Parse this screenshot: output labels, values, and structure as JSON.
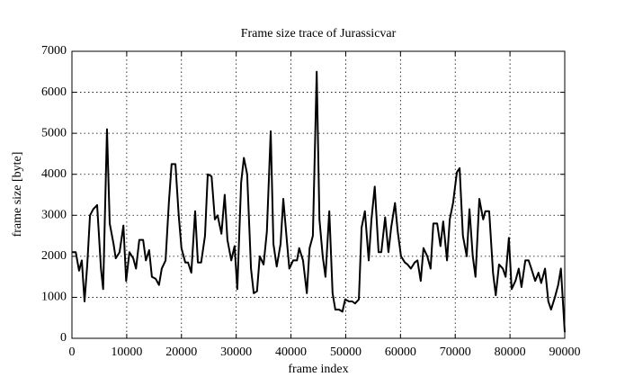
{
  "chart_data": {
    "type": "line",
    "title": "Frame size trace of Jurassicvar",
    "xlabel": "frame index",
    "ylabel": "frame size [byte]",
    "xlim": [
      0,
      90000
    ],
    "ylim": [
      0,
      7000
    ],
    "xticks": [
      0,
      10000,
      20000,
      30000,
      40000,
      50000,
      60000,
      70000,
      80000,
      90000
    ],
    "yticks": [
      0,
      1000,
      2000,
      3000,
      4000,
      5000,
      6000,
      7000
    ],
    "grid": true,
    "x": [
      0,
      700,
      1300,
      1800,
      2300,
      2800,
      3300,
      3900,
      4600,
      5300,
      5700,
      6400,
      6900,
      7600,
      8000,
      8700,
      9400,
      9900,
      10500,
      11200,
      11700,
      12300,
      13000,
      13500,
      14100,
      14600,
      15300,
      15900,
      16400,
      17100,
      17700,
      18200,
      18900,
      19500,
      20000,
      20700,
      21200,
      21800,
      22500,
      23000,
      23600,
      24300,
      24800,
      25500,
      26100,
      26600,
      27300,
      27900,
      28400,
      29100,
      29700,
      30200,
      30900,
      31400,
      32000,
      32700,
      33200,
      33800,
      34300,
      35000,
      35600,
      36300,
      36800,
      37400,
      38100,
      38600,
      39300,
      39700,
      40400,
      41100,
      41500,
      42200,
      42900,
      43400,
      44000,
      44700,
      45200,
      45800,
      46300,
      47000,
      47600,
      48100,
      48800,
      49400,
      49900,
      50600,
      51200,
      51700,
      52400,
      52900,
      53500,
      54200,
      54700,
      55300,
      56000,
      56500,
      57200,
      57800,
      58300,
      59000,
      59500,
      60100,
      60800,
      61300,
      61900,
      62600,
      63100,
      63700,
      64200,
      64900,
      65500,
      66000,
      66700,
      67300,
      67800,
      68500,
      69000,
      69600,
      70300,
      70800,
      71400,
      72100,
      72600,
      73200,
      73700,
      74400,
      75100,
      75500,
      76200,
      76900,
      77400,
      78000,
      78700,
      79200,
      79800,
      80300,
      81000,
      81600,
      82100,
      82800,
      83400,
      83900,
      84600,
      85200,
      85700,
      86400,
      87000,
      87500,
      88200,
      88800,
      89300,
      90000
    ],
    "series": [
      {
        "name": "Jurassicvar",
        "color": "#000000",
        "values": [
          2100,
          2100,
          1650,
          1900,
          900,
          1800,
          3000,
          3150,
          3250,
          1700,
          1200,
          5100,
          2800,
          2300,
          1950,
          2100,
          2750,
          1400,
          2100,
          1950,
          1700,
          2400,
          2400,
          1900,
          2150,
          1500,
          1450,
          1300,
          1700,
          1900,
          3300,
          4250,
          4250,
          3000,
          2200,
          1850,
          1850,
          1600,
          3100,
          1850,
          1850,
          2500,
          4000,
          3950,
          2900,
          3000,
          2550,
          3500,
          2400,
          1900,
          2250,
          1200,
          3800,
          4400,
          4000,
          1700,
          1100,
          1150,
          2000,
          1800,
          2600,
          5050,
          2300,
          1750,
          2300,
          3400,
          2300,
          1700,
          1900,
          1900,
          2200,
          1900,
          1100,
          2200,
          2500,
          6500,
          2900,
          2000,
          1500,
          3100,
          1100,
          700,
          700,
          650,
          950,
          900,
          900,
          850,
          950,
          2700,
          3100,
          1900,
          2900,
          3700,
          2100,
          2100,
          2950,
          2100,
          2700,
          3300,
          2600,
          2000,
          1850,
          1800,
          1700,
          1850,
          1900,
          1400,
          2200,
          2000,
          1700,
          2800,
          2800,
          2250,
          2850,
          1900,
          2900,
          3300,
          4050,
          4150,
          2500,
          2000,
          3150,
          2000,
          1500,
          3400,
          2900,
          3100,
          3100,
          1600,
          1050,
          1800,
          1700,
          1500,
          2450,
          1200,
          1400,
          1700,
          1250,
          1900,
          1900,
          1700,
          1400,
          1600,
          1350,
          1700,
          900,
          700,
          1000,
          1300,
          1700,
          150
        ]
      }
    ]
  }
}
